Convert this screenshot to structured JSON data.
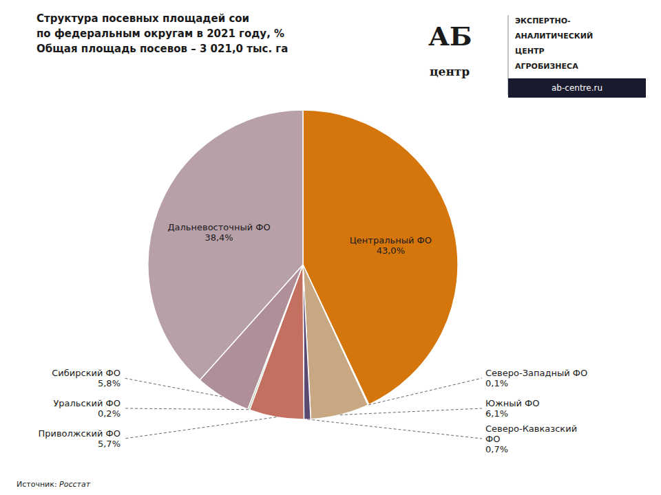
{
  "chart_data": {
    "type": "pie",
    "title": "Структура посевных площадей сои",
    "subtitle": [
      "по федеральным округам в 2021 году, %",
      "Общая площадь посевов – 3 021,0 тыс. га"
    ],
    "categories": [
      "Центральный ФО",
      "Северо-Западный ФО",
      "Южный ФО",
      "Северо-Кавказский\nФО",
      "Приволжский ФО",
      "Уральский ФО",
      "Сибирский ФО",
      "Дальневосточный ФО"
    ],
    "values": [
      43.0,
      0.1,
      6.1,
      0.7,
      5.7,
      0.2,
      5.8,
      38.4
    ],
    "value_labels": [
      "43,0%",
      "0,1%",
      "6,1%",
      "0,7%",
      "5,7%",
      "0,2%",
      "5,8%",
      "38,4%"
    ],
    "colors": [
      "#D4760C",
      "#2E6B7E",
      "#C8A882",
      "#5B4A72",
      "#C47060",
      "#A8C4A0",
      "#B09098",
      "#B8A0A8"
    ],
    "data_labels": true,
    "annotations": [
      "Источник: ",
      "Росстат",
      "АБ",
      "центр",
      "ЭКСПЕРТНО-",
      "АНАЛИТИЧЕСКИЙ",
      "ЦЕНТР",
      "АГРОБИЗНЕСА",
      "ab-centre.ru"
    ]
  }
}
